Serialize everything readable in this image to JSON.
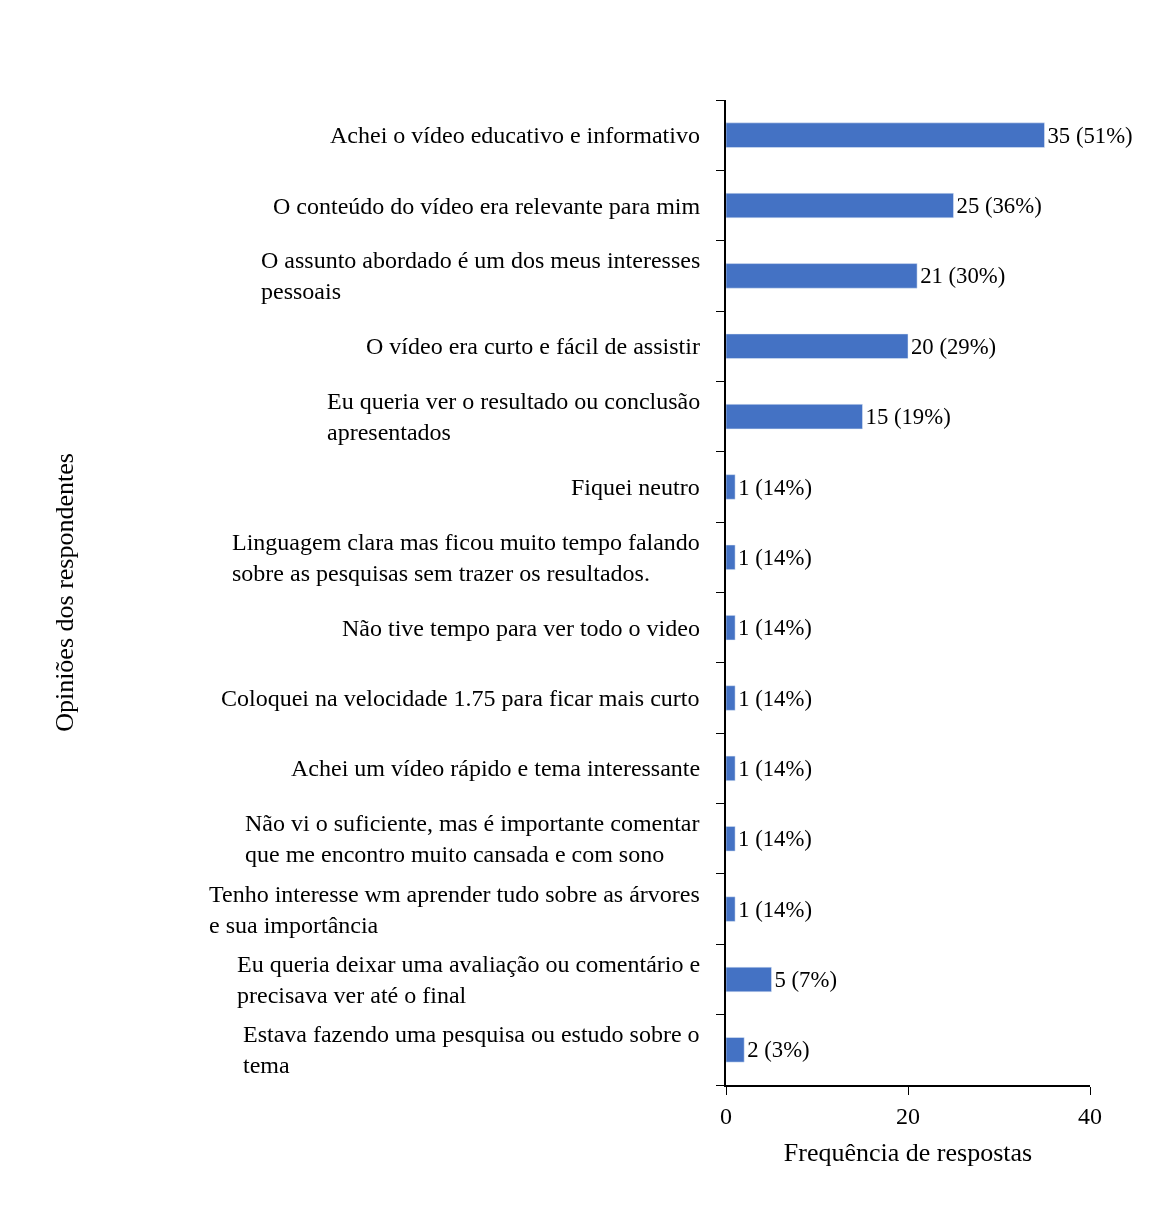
{
  "chart_data": {
    "type": "bar",
    "orientation": "horizontal",
    "ylabel": "Opiniões dos respondentes",
    "xlabel": "Frequência de respostas",
    "categories": [
      "Achei o vídeo educativo e informativo",
      "O conteúdo do vídeo era relevante para mim",
      "O assunto abordado é um dos meus interesses\npessoais",
      "O vídeo era curto e fácil de assistir",
      "Eu queria ver o resultado ou conclusão\napresentados",
      "Fiquei neutro",
      "Linguagem clara mas ficou muito tempo falando\nsobre as pesquisas sem trazer os resultados.",
      "Não tive tempo para ver todo o video",
      "Coloquei na velocidade 1.75 para ficar mais curto",
      "Achei um vídeo rápido e tema interessante",
      "Não vi o suficiente, mas é importante comentar\nque me encontro muito cansada e com sono",
      "Tenho interesse wm aprender tudo sobre as árvores\ne sua importância",
      "Eu queria deixar uma avaliação ou comentário e\nprecisava ver até o final",
      "Estava fazendo uma pesquisa ou estudo sobre o\ntema"
    ],
    "values": [
      35,
      25,
      21,
      20,
      15,
      1,
      1,
      1,
      1,
      1,
      1,
      1,
      5,
      2
    ],
    "value_labels": [
      "35 (51%)",
      "25 (36%)",
      "21 (30%)",
      "20 (29%)",
      "15 (19%)",
      "1 (14%)",
      "1 (14%)",
      "1 (14%)",
      "1 (14%)",
      "1 (14%)",
      "1 (14%)",
      "1 (14%)",
      "5 (7%)",
      "2 (3%)"
    ],
    "color": "#4472c4",
    "xlim": [
      0,
      40
    ],
    "xticks": [
      0,
      20,
      40
    ],
    "legend": false
  }
}
